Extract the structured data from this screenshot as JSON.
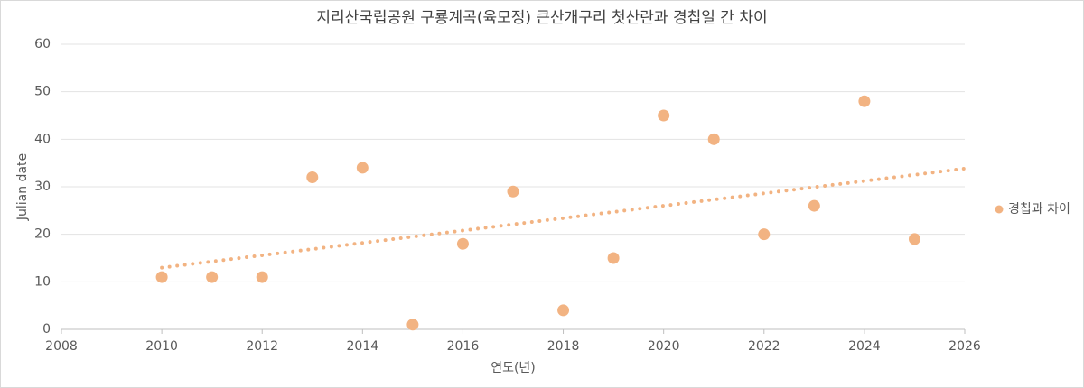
{
  "chart_data": {
    "type": "scatter",
    "title": "지리산국립공원 구룡계곡(육모정) 큰산개구리 첫산란과 경칩일 간 차이",
    "x_label": "연도(년)",
    "y_label": "Julian date",
    "x": [
      2010,
      2011,
      2012,
      2013,
      2014,
      2015,
      2016,
      2017,
      2018,
      2019,
      2020,
      2021,
      2022,
      2023,
      2024,
      2025
    ],
    "series": [
      {
        "name": "경칩과 차이",
        "color": "#f2b382",
        "values": [
          11,
          11,
          11,
          32,
          34,
          1,
          18,
          29,
          4,
          15,
          45,
          40,
          20,
          26,
          48,
          19
        ]
      }
    ],
    "xlim": [
      2008,
      2026
    ],
    "xticks": [
      2008,
      2010,
      2012,
      2014,
      2016,
      2018,
      2020,
      2022,
      2024,
      2026
    ],
    "ylim": [
      0,
      60
    ],
    "yticks": [
      0,
      10,
      20,
      30,
      40,
      50,
      60
    ],
    "grid": true,
    "trendline": "linear",
    "legend": "right"
  }
}
